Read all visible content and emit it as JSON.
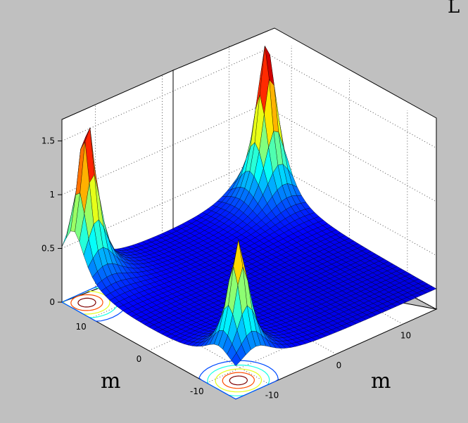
{
  "chart_data": {
    "type": "surface3d",
    "title": "",
    "corner_text": "L",
    "xlabel": "m",
    "ylabel": "m",
    "zlabel": "",
    "xlim": [
      -15,
      15
    ],
    "ylim": [
      -15,
      15
    ],
    "zlim": [
      0,
      1.7
    ],
    "x_ticks": [
      "-10",
      "0",
      "10"
    ],
    "y_ticks": [
      "-10",
      "0",
      "10"
    ],
    "z_ticks": [
      "0",
      "0.5",
      "1",
      "1.5"
    ],
    "z_tick_values": [
      0,
      0.5,
      1,
      1.5
    ],
    "grid": true,
    "colormap": "jet",
    "has_floor_contours": true,
    "peaks": [
      {
        "x": 13,
        "y": 12,
        "height": 1.75
      },
      {
        "x": -13,
        "y": 13,
        "height": 1.7
      },
      {
        "x": -12,
        "y": -12,
        "height": 1.3
      }
    ],
    "base_level": 0.18
  }
}
